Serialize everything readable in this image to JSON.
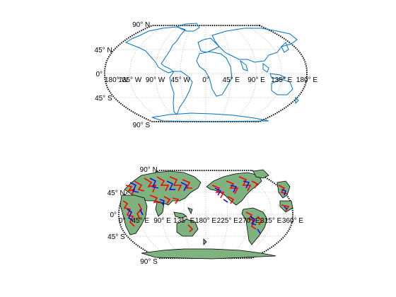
{
  "chart_data": [
    {
      "type": "map",
      "projection": "Robinson",
      "grid": true,
      "frame": "dotted",
      "coastline_color": "#0072bd",
      "longitude_ticks": [
        "180° W",
        "135° W",
        "90° W",
        "45° W",
        "0°",
        "45° E",
        "90° E",
        "135° E",
        "180° E"
      ],
      "latitude_ticks": [
        "90° N",
        "45° N",
        "0°",
        "45° S",
        "90° S"
      ]
    },
    {
      "type": "map",
      "projection": "Robinson",
      "grid": true,
      "frame": "dotted",
      "land_color": "#7eb27e",
      "coastline_color": "#000000",
      "overlay_colors": [
        "#ff0000",
        "#0000ff"
      ],
      "longitude_ticks": [
        "0°",
        "45° E",
        "90° E",
        "135° E",
        "180° E",
        "225° E",
        "270° E",
        "315° E",
        "360° E"
      ],
      "latitude_ticks": [
        "90° N",
        "45° N",
        "0°",
        "45° S",
        "90° S"
      ]
    }
  ]
}
